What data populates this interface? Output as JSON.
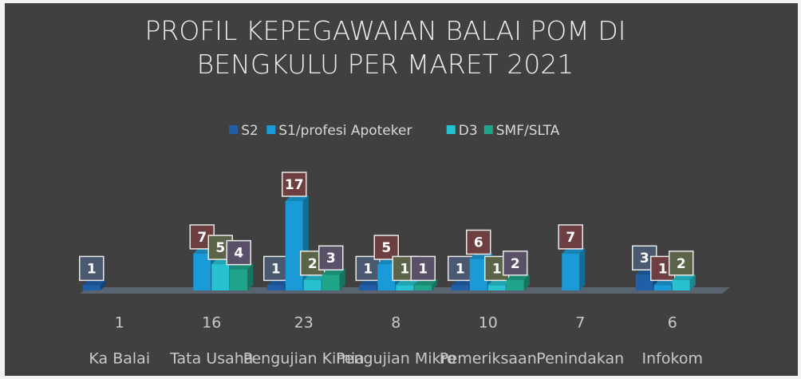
{
  "chart_data": {
    "type": "bar3d",
    "title": "PROFIL KEPEGAWAIAN BALAI POM DI BENGKULU PER MARET 2021",
    "categories": [
      "Ka Balai",
      "Tata Usaha",
      "Pengujian Kimia",
      "Pengujian Mikro",
      "Pemeriksaan",
      "Penindakan",
      "Infokom"
    ],
    "category_totals": [
      "1",
      "16",
      "23",
      "8",
      "10",
      "7",
      "6"
    ],
    "series": [
      {
        "name": "S2",
        "color": "#1f5fa8",
        "values": [
          1,
          null,
          1,
          1,
          1,
          null,
          3
        ]
      },
      {
        "name": "S1/profesi Apoteker",
        "color": "#1a9bd7",
        "values": [
          null,
          7,
          17,
          5,
          6,
          7,
          1
        ]
      },
      {
        "name": "D3",
        "color": "#27c2cf",
        "values": [
          null,
          5,
          2,
          1,
          1,
          null,
          2
        ]
      },
      {
        "name": "SMF/SLTA",
        "color": "#1fa58a",
        "values": [
          null,
          4,
          3,
          1,
          2,
          null,
          null
        ]
      }
    ],
    "label_colors": [
      "#4a5870",
      "#6e3f40",
      "#5b6448",
      "#5a5068"
    ],
    "legend": "top"
  }
}
